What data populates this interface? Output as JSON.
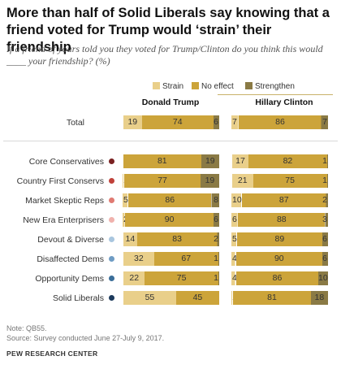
{
  "header": {
    "title": "More than half of Solid Liberals say knowing that a friend voted for Trump would ‘strain’ their friendship",
    "subtitle": "If a friend of yours told you they voted for Trump/Clinton do you think this would ____ your friendship? (%)"
  },
  "note": "Note: QB55.",
  "source": "Source: Survey conducted June 27-July 9, 2017.",
  "brand": "PEW RESEARCH CENTER",
  "chart_data": {
    "type": "bar",
    "stacked": true,
    "orientation": "horizontal",
    "unit": "%",
    "series_names": [
      "Strain",
      "No effect",
      "Strengthen"
    ],
    "colors": {
      "Strain": "#e9cf8a",
      "No effect": "#cca43a",
      "Strengthen": "#8a7a45"
    },
    "panels": [
      {
        "title": "Donald Trump",
        "rows": [
          {
            "label": "Total",
            "values": [
              19,
              74,
              6
            ]
          },
          {
            "label": "Core Conservatives",
            "values": [
              0,
              81,
              19
            ]
          },
          {
            "label": "Country First Conservs",
            "values": [
              1,
              77,
              19
            ]
          },
          {
            "label": "Market Skeptic Reps",
            "values": [
              5,
              86,
              8
            ]
          },
          {
            "label": "New Era Enterprisers",
            "values": [
              2,
              90,
              6
            ]
          },
          {
            "label": "Devout & Diverse",
            "values": [
              14,
              83,
              2
            ]
          },
          {
            "label": "Disaffected Dems",
            "values": [
              32,
              67,
              1
            ]
          },
          {
            "label": "Opportunity Dems",
            "values": [
              22,
              75,
              1
            ]
          },
          {
            "label": "Solid Liberals",
            "values": [
              55,
              45,
              0
            ]
          }
        ]
      },
      {
        "title": "Hillary Clinton",
        "rows": [
          {
            "label": "Total",
            "values": [
              7,
              86,
              7
            ]
          },
          {
            "label": "Core Conservatives",
            "values": [
              17,
              82,
              1
            ]
          },
          {
            "label": "Country First Conservs",
            "values": [
              21,
              75,
              1
            ]
          },
          {
            "label": "Market Skeptic Reps",
            "values": [
              10,
              87,
              2
            ]
          },
          {
            "label": "New Era Enterprisers",
            "values": [
              6,
              88,
              3
            ]
          },
          {
            "label": "Devout & Diverse",
            "values": [
              5,
              89,
              6
            ]
          },
          {
            "label": "Disaffected Dems",
            "values": [
              4,
              90,
              6
            ]
          },
          {
            "label": "Opportunity Dems",
            "values": [
              4,
              86,
              10
            ]
          },
          {
            "label": "Solid Liberals",
            "values": [
              1,
              81,
              18
            ]
          }
        ]
      }
    ],
    "typology_dot_colors": {
      "Core Conservatives": "#7a2121",
      "Country First Conservs": "#c0413a",
      "Market Skeptic Reps": "#e07a72",
      "New Era Enterprisers": "#f0b2ad",
      "Devout & Diverse": "#a9c6df",
      "Disaffected Dems": "#6f9cc4",
      "Opportunity Dems": "#3b6e99",
      "Solid Liberals": "#1c3a5c"
    }
  }
}
